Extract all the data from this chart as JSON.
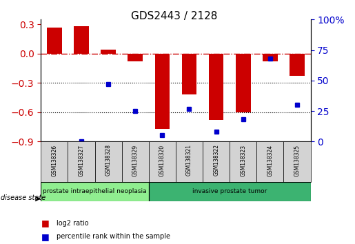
{
  "title": "GDS2443 / 2128",
  "samples": [
    "GSM138326",
    "GSM138327",
    "GSM138328",
    "GSM138329",
    "GSM138320",
    "GSM138321",
    "GSM138322",
    "GSM138323",
    "GSM138324",
    "GSM138325"
  ],
  "log2_ratio": [
    0.27,
    0.28,
    0.04,
    -0.08,
    -0.77,
    -0.42,
    -0.68,
    -0.6,
    -0.08,
    -0.23
  ],
  "percentile_rank": [
    null,
    0.0,
    47.0,
    25.0,
    5.0,
    27.0,
    8.0,
    18.0,
    68.0,
    30.0
  ],
  "groups": [
    {
      "label": "prostate intraepithelial neoplasia",
      "indices": [
        0,
        1,
        2,
        3
      ],
      "color": "#90ee90"
    },
    {
      "label": "invasive prostate tumor",
      "indices": [
        4,
        5,
        6,
        7,
        8,
        9
      ],
      "color": "#3cb371"
    }
  ],
  "bar_color": "#cc0000",
  "dot_color": "#0000cc",
  "ylim_left": [
    -0.9,
    0.35
  ],
  "ylim_right": [
    0,
    100
  ],
  "yticks_left": [
    -0.9,
    -0.6,
    -0.3,
    0.0,
    0.3
  ],
  "yticks_right": [
    0,
    25,
    50,
    75,
    100
  ],
  "dotted_lines": [
    -0.3,
    -0.6
  ],
  "legend_items": [
    {
      "label": "log2 ratio",
      "color": "#cc0000"
    },
    {
      "label": "percentile rank within the sample",
      "color": "#0000cc"
    }
  ],
  "disease_state_label": "disease state",
  "bar_width": 0.55
}
